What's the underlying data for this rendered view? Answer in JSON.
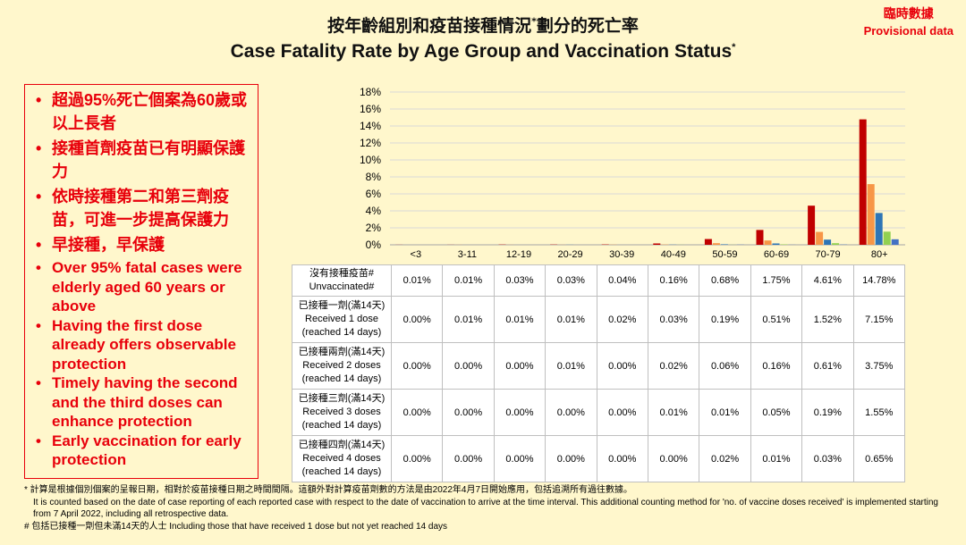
{
  "title_zh": "按年齡組別和疫苗接種情況",
  "title_zh_sup": "*",
  "title_zh_tail": "劃分的死亡率",
  "title_en": "Case Fatality Rate by Age Group and Vaccination Status",
  "title_en_sup": "*",
  "provisional_zh": "臨時數據",
  "provisional_en": "Provisional data",
  "key_messages_zh": [
    "超過95%死亡個案為60歲或以上長者",
    "接種首劑疫苗已有明顯保護力",
    "依時接種第二和第三劑疫苗，可進一步提高保護力",
    "早接種，早保護"
  ],
  "key_messages_en": [
    "Over 95% fatal cases were elderly aged 60 years or above",
    "Having the first dose already offers observable protection",
    "Timely having the second and the third doses can enhance protection",
    "Early vaccination for early protection"
  ],
  "chart_data": {
    "type": "bar",
    "title": "Case Fatality Rate by Age Group and Vaccination Status",
    "categories": [
      "<3",
      "3-11",
      "12-19",
      "20-29",
      "30-39",
      "40-49",
      "50-59",
      "60-69",
      "70-79",
      "80+"
    ],
    "ylim": [
      0,
      18
    ],
    "yticks": [
      "0%",
      "2%",
      "4%",
      "6%",
      "8%",
      "10%",
      "12%",
      "14%",
      "16%",
      "18%"
    ],
    "grid": true,
    "series": [
      {
        "name": "沒有接種疫苗# Unvaccinated#",
        "label_zh": "沒有接種疫苗#",
        "label_en": "Unvaccinated#",
        "color": "#C00000",
        "values": [
          0.01,
          0.01,
          0.03,
          0.03,
          0.04,
          0.16,
          0.68,
          1.75,
          4.61,
          14.78
        ],
        "labels": [
          "0.01%",
          "0.01%",
          "0.03%",
          "0.03%",
          "0.04%",
          "0.16%",
          "0.68%",
          "1.75%",
          "4.61%",
          "14.78%"
        ]
      },
      {
        "name": "已接種一劑(滿14天) Received 1 dose (reached 14 days)",
        "label_zh": "已接種一劑(滿14天)",
        "label_en": "Received 1 dose",
        "label_en2": "(reached 14 days)",
        "color": "#F79646",
        "values": [
          0.0,
          0.01,
          0.01,
          0.01,
          0.02,
          0.03,
          0.19,
          0.51,
          1.52,
          7.15
        ],
        "labels": [
          "0.00%",
          "0.01%",
          "0.01%",
          "0.01%",
          "0.02%",
          "0.03%",
          "0.19%",
          "0.51%",
          "1.52%",
          "7.15%"
        ]
      },
      {
        "name": "已接種兩劑(滿14天) Received 2 doses (reached 14 days)",
        "label_zh": "已接種兩劑(滿14天)",
        "label_en": "Received 2 doses",
        "label_en2": "(reached 14 days)",
        "color": "#2E75B6",
        "values": [
          0.0,
          0.0,
          0.0,
          0.01,
          0.0,
          0.02,
          0.06,
          0.16,
          0.61,
          3.75
        ],
        "labels": [
          "0.00%",
          "0.00%",
          "0.00%",
          "0.01%",
          "0.00%",
          "0.02%",
          "0.06%",
          "0.16%",
          "0.61%",
          "3.75%"
        ]
      },
      {
        "name": "已接種三劑(滿14天) Received 3 doses (reached 14 days)",
        "label_zh": "已接種三劑(滿14天)",
        "label_en": "Received 3 doses",
        "label_en2": "(reached 14 days)",
        "color": "#92D050",
        "values": [
          0.0,
          0.0,
          0.0,
          0.0,
          0.0,
          0.01,
          0.01,
          0.05,
          0.19,
          1.55
        ],
        "labels": [
          "0.00%",
          "0.00%",
          "0.00%",
          "0.00%",
          "0.00%",
          "0.01%",
          "0.01%",
          "0.05%",
          "0.19%",
          "1.55%"
        ]
      },
      {
        "name": "已接種四劑(滿14天) Received 4 doses (reached 14 days)",
        "label_zh": "已接種四劑(滿14天)",
        "label_en": "Received 4 doses",
        "label_en2": "(reached 14 days)",
        "color": "#4472C4",
        "values": [
          0.0,
          0.0,
          0.0,
          0.0,
          0.0,
          0.0,
          0.02,
          0.01,
          0.03,
          0.65
        ],
        "labels": [
          "0.00%",
          "0.00%",
          "0.00%",
          "0.00%",
          "0.00%",
          "0.00%",
          "0.02%",
          "0.01%",
          "0.03%",
          "0.65%"
        ]
      }
    ]
  },
  "footnotes": {
    "note1_zh": "* 計算是根據個別個案的呈報日期，相對於疫苗接種日期之時間間隔。這額外對計算疫苗劑數的方法是由2022年4月7日開始應用，包括追溯所有過往數據。",
    "note1_en": "It is counted based on the date of case reporting of each reported case with respect to the date of vaccination to arrive at the time interval. This additional counting method for 'no. of vaccine doses received' is implemented starting from 7 April 2022, including all retrospective data.",
    "note2": "# 包括已接種一劑但未滿14天的人士 Including those that have received 1 dose but not yet reached 14 days"
  }
}
